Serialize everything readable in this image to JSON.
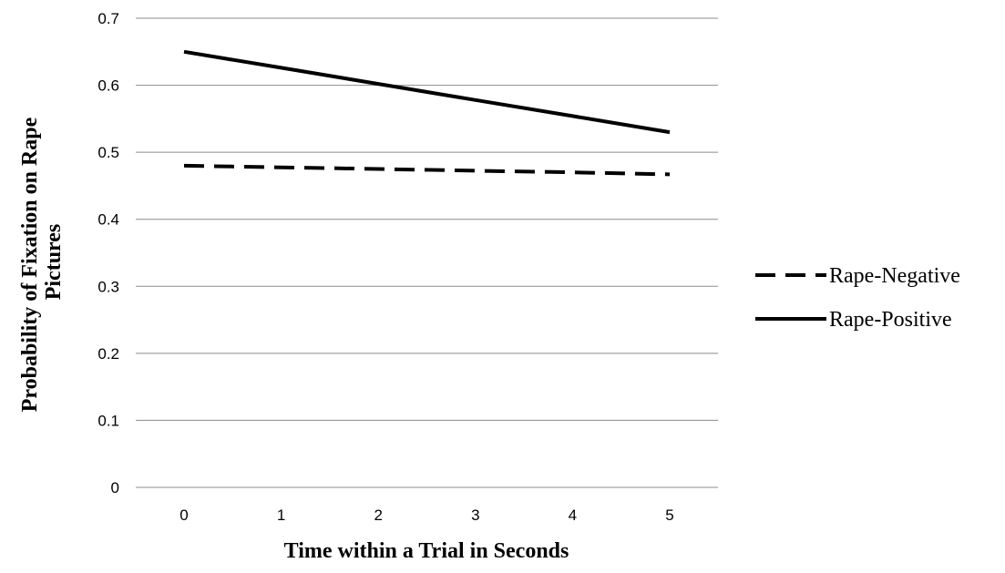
{
  "chart_data": {
    "type": "line",
    "xlabel": "Time within a Trial in Seconds",
    "ylabel_lines": [
      "Probability of Fixation on Rape",
      "Pictures"
    ],
    "x": [
      0,
      1,
      2,
      3,
      4,
      5
    ],
    "xlim": [
      0,
      5
    ],
    "ylim": [
      0,
      0.7
    ],
    "yticks": [
      "0",
      "0.1",
      "0.2",
      "0.3",
      "0.4",
      "0.5",
      "0.6",
      "0.7"
    ],
    "xticks": [
      "0",
      "1",
      "2",
      "3",
      "4",
      "5"
    ],
    "grid": "horizontal",
    "legend_position": "right",
    "series": [
      {
        "name": "Rape-Negative",
        "style": "dashed",
        "color": "#000000",
        "values": [
          0.48,
          0.4775,
          0.475,
          0.4725,
          0.47,
          0.467
        ]
      },
      {
        "name": "Rape-Positive",
        "style": "solid",
        "color": "#000000",
        "values": [
          0.65,
          0.626,
          0.602,
          0.578,
          0.554,
          0.53
        ]
      }
    ]
  }
}
